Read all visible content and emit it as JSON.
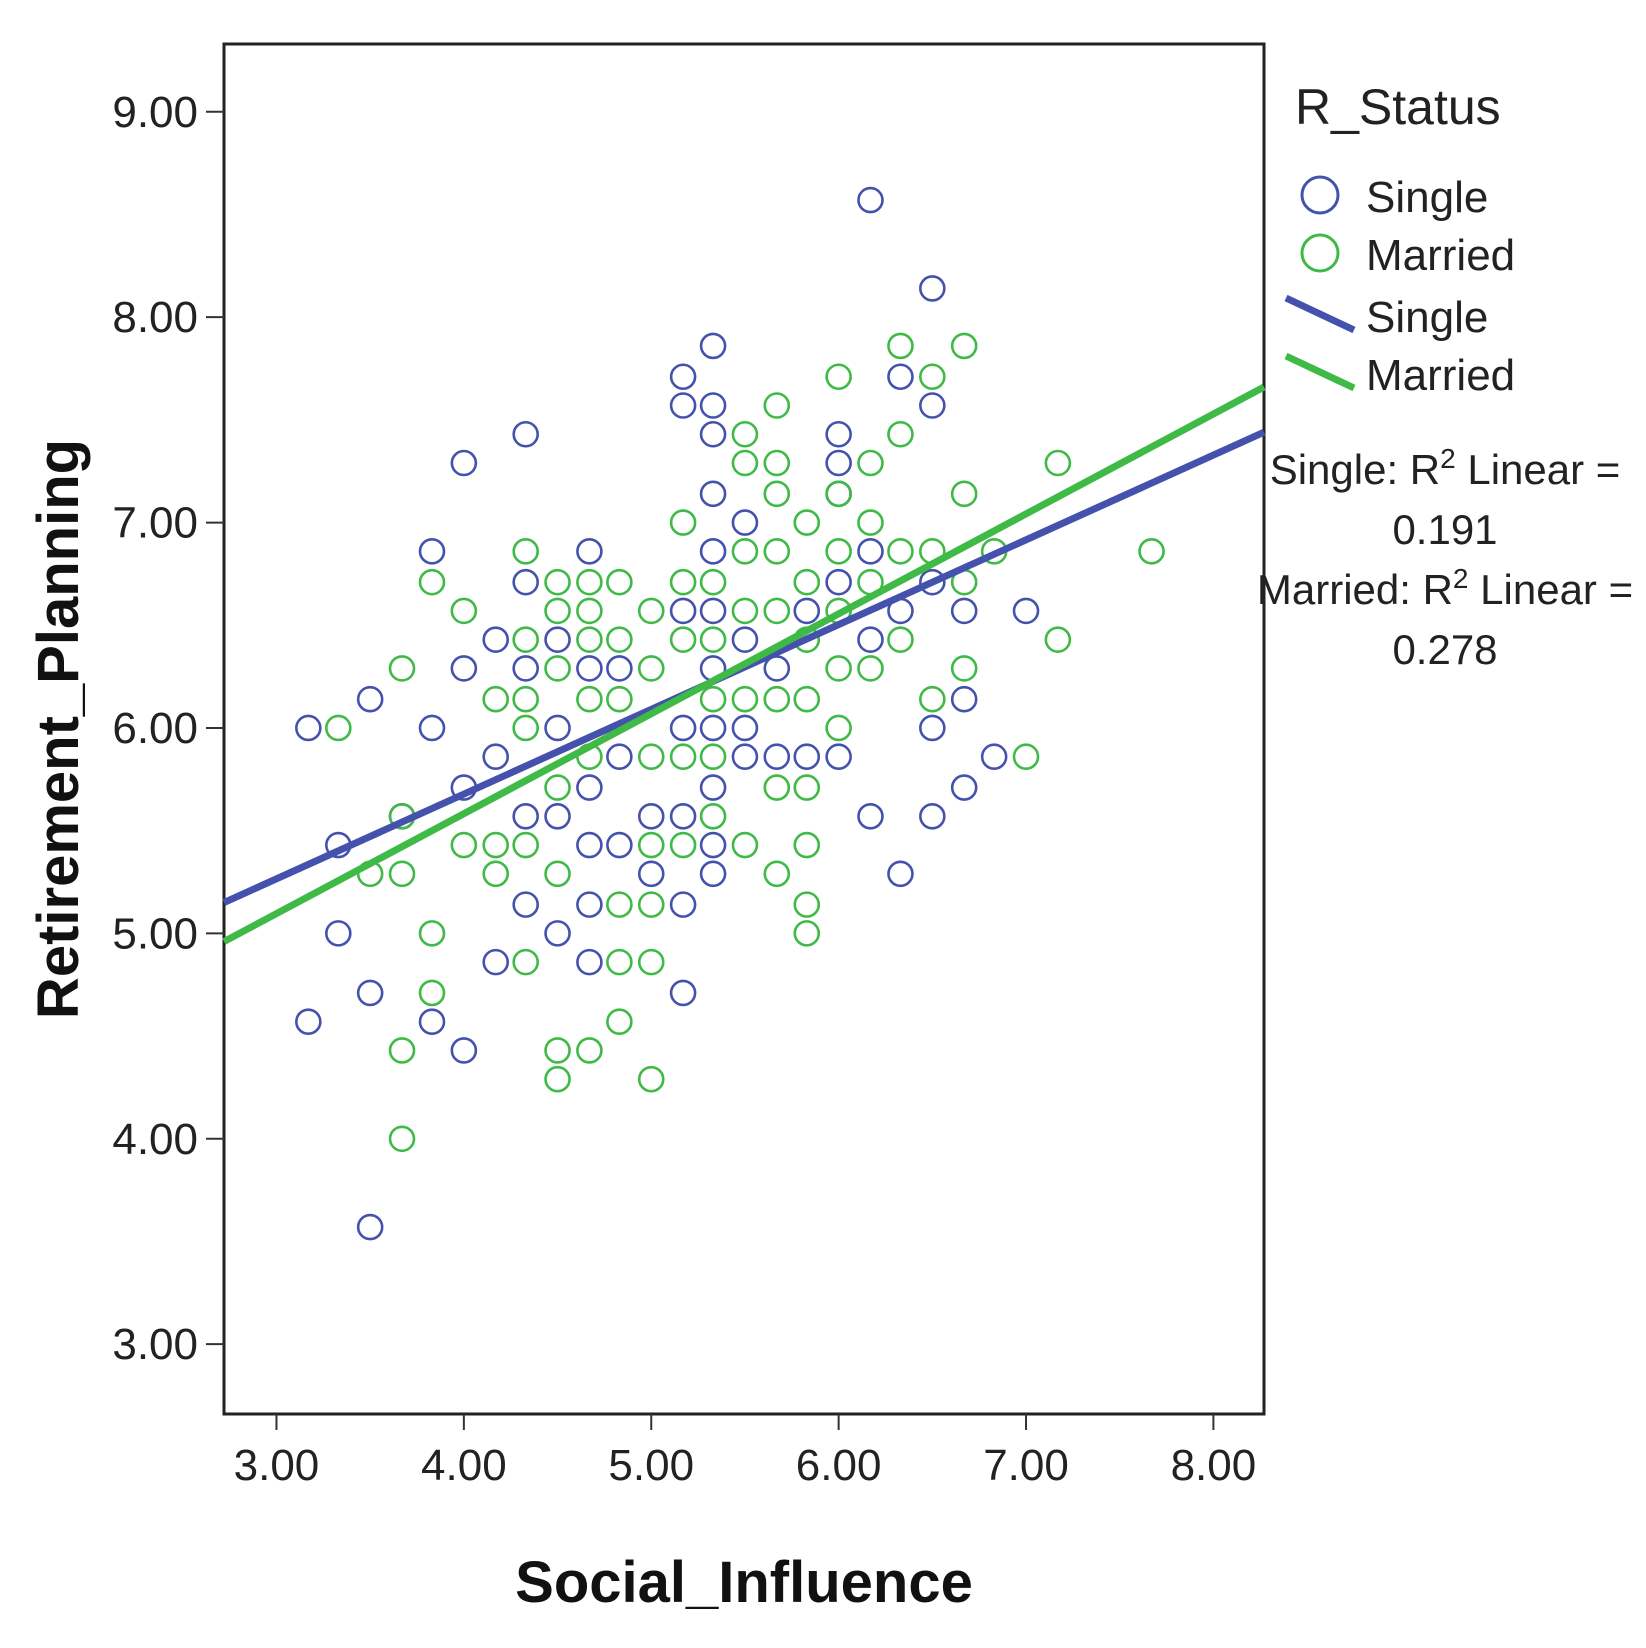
{
  "chart_data": {
    "type": "scatter",
    "title": "",
    "xlabel": "Social_Influence",
    "ylabel": "Retirement_Planning",
    "xlim": [
      2.72,
      8.27
    ],
    "ylim": [
      2.66,
      9.33
    ],
    "xticks": [
      "3.00",
      "4.00",
      "5.00",
      "6.00",
      "7.00",
      "8.00"
    ],
    "yticks": [
      "3.00",
      "4.00",
      "5.00",
      "6.00",
      "7.00",
      "8.00",
      "9.00"
    ],
    "legend": {
      "title": "R_Status",
      "placement": "right",
      "marker_entries": [
        "Single",
        "Married"
      ],
      "line_entries": [
        "Single",
        "Married"
      ]
    },
    "colors": {
      "Single": "#4452ad",
      "Married": "#3fba46"
    },
    "fit_lines": [
      {
        "name": "Single",
        "x": [
          2.72,
          8.27
        ],
        "y": [
          5.15,
          7.44
        ],
        "label": "Single: R",
        "sup": "2",
        "label_rest": " Linear =",
        "r2": "0.191"
      },
      {
        "name": "Married",
        "x": [
          2.72,
          8.27
        ],
        "y": [
          4.96,
          7.66
        ],
        "label": "Married: R",
        "sup": "2",
        "label_rest": " Linear =",
        "r2": "0.278"
      }
    ],
    "series": [
      {
        "name": "Single",
        "points": [
          [
            3.17,
            6.0
          ],
          [
            3.17,
            4.57
          ],
          [
            3.33,
            5.43
          ],
          [
            3.33,
            5.0
          ],
          [
            3.5,
            6.14
          ],
          [
            3.5,
            4.71
          ],
          [
            3.5,
            3.57
          ],
          [
            3.67,
            5.57
          ],
          [
            3.83,
            6.86
          ],
          [
            3.83,
            6.0
          ],
          [
            3.83,
            4.57
          ],
          [
            4.0,
            7.29
          ],
          [
            4.0,
            6.29
          ],
          [
            4.0,
            5.71
          ],
          [
            4.0,
            4.43
          ],
          [
            4.17,
            6.43
          ],
          [
            4.17,
            5.86
          ],
          [
            4.17,
            4.86
          ],
          [
            4.33,
            7.43
          ],
          [
            4.33,
            6.71
          ],
          [
            4.33,
            6.29
          ],
          [
            4.33,
            5.57
          ],
          [
            4.33,
            5.14
          ],
          [
            4.5,
            6.43
          ],
          [
            4.5,
            6.0
          ],
          [
            4.5,
            5.57
          ],
          [
            4.5,
            5.0
          ],
          [
            4.67,
            6.86
          ],
          [
            4.67,
            6.29
          ],
          [
            4.67,
            5.71
          ],
          [
            4.67,
            5.43
          ],
          [
            4.67,
            5.14
          ],
          [
            4.67,
            4.86
          ],
          [
            4.83,
            6.29
          ],
          [
            4.83,
            5.86
          ],
          [
            4.83,
            5.43
          ],
          [
            5.0,
            5.57
          ],
          [
            5.0,
            5.29
          ],
          [
            5.17,
            7.71
          ],
          [
            5.17,
            7.57
          ],
          [
            5.17,
            6.57
          ],
          [
            5.17,
            6.0
          ],
          [
            5.17,
            5.57
          ],
          [
            5.17,
            5.14
          ],
          [
            5.17,
            4.71
          ],
          [
            5.33,
            7.86
          ],
          [
            5.33,
            7.57
          ],
          [
            5.33,
            7.43
          ],
          [
            5.33,
            7.14
          ],
          [
            5.33,
            6.86
          ],
          [
            5.33,
            6.57
          ],
          [
            5.33,
            6.29
          ],
          [
            5.33,
            6.0
          ],
          [
            5.33,
            5.71
          ],
          [
            5.33,
            5.43
          ],
          [
            5.33,
            5.29
          ],
          [
            5.5,
            7.0
          ],
          [
            5.5,
            6.43
          ],
          [
            5.5,
            6.0
          ],
          [
            5.5,
            5.86
          ],
          [
            5.67,
            6.29
          ],
          [
            5.67,
            5.86
          ],
          [
            5.83,
            6.57
          ],
          [
            5.83,
            5.86
          ],
          [
            6.0,
            7.43
          ],
          [
            6.0,
            7.29
          ],
          [
            6.0,
            7.14
          ],
          [
            6.0,
            6.71
          ],
          [
            6.0,
            5.86
          ],
          [
            6.17,
            8.57
          ],
          [
            6.17,
            6.86
          ],
          [
            6.17,
            6.43
          ],
          [
            6.17,
            5.57
          ],
          [
            6.33,
            7.71
          ],
          [
            6.33,
            6.57
          ],
          [
            6.33,
            5.29
          ],
          [
            6.5,
            8.14
          ],
          [
            6.5,
            7.57
          ],
          [
            6.5,
            6.71
          ],
          [
            6.5,
            6.0
          ],
          [
            6.5,
            5.57
          ],
          [
            6.67,
            6.57
          ],
          [
            6.67,
            6.14
          ],
          [
            6.67,
            5.71
          ],
          [
            6.83,
            5.86
          ],
          [
            7.0,
            6.57
          ]
        ]
      },
      {
        "name": "Married",
        "points": [
          [
            3.33,
            6.0
          ],
          [
            3.5,
            5.29
          ],
          [
            3.67,
            6.29
          ],
          [
            3.67,
            5.57
          ],
          [
            3.67,
            5.29
          ],
          [
            3.67,
            4.43
          ],
          [
            3.67,
            4.0
          ],
          [
            3.83,
            6.71
          ],
          [
            3.83,
            5.0
          ],
          [
            3.83,
            4.71
          ],
          [
            4.0,
            6.57
          ],
          [
            4.0,
            5.43
          ],
          [
            4.17,
            6.14
          ],
          [
            4.17,
            5.43
          ],
          [
            4.17,
            5.29
          ],
          [
            4.33,
            6.86
          ],
          [
            4.33,
            6.43
          ],
          [
            4.33,
            6.14
          ],
          [
            4.33,
            6.0
          ],
          [
            4.33,
            5.43
          ],
          [
            4.33,
            4.86
          ],
          [
            4.5,
            6.71
          ],
          [
            4.5,
            6.57
          ],
          [
            4.5,
            6.29
          ],
          [
            4.5,
            5.71
          ],
          [
            4.5,
            5.29
          ],
          [
            4.5,
            4.43
          ],
          [
            4.5,
            4.29
          ],
          [
            4.67,
            6.71
          ],
          [
            4.67,
            6.57
          ],
          [
            4.67,
            6.43
          ],
          [
            4.67,
            6.14
          ],
          [
            4.67,
            5.86
          ],
          [
            4.67,
            4.43
          ],
          [
            4.83,
            6.71
          ],
          [
            4.83,
            6.43
          ],
          [
            4.83,
            6.14
          ],
          [
            4.83,
            5.14
          ],
          [
            4.83,
            4.86
          ],
          [
            4.83,
            4.57
          ],
          [
            5.0,
            6.57
          ],
          [
            5.0,
            6.29
          ],
          [
            5.0,
            5.86
          ],
          [
            5.0,
            5.43
          ],
          [
            5.0,
            5.14
          ],
          [
            5.0,
            4.86
          ],
          [
            5.0,
            4.29
          ],
          [
            5.17,
            7.0
          ],
          [
            5.17,
            6.71
          ],
          [
            5.17,
            6.43
          ],
          [
            5.17,
            5.86
          ],
          [
            5.17,
            5.43
          ],
          [
            5.33,
            6.71
          ],
          [
            5.33,
            6.43
          ],
          [
            5.33,
            6.14
          ],
          [
            5.33,
            5.86
          ],
          [
            5.33,
            5.57
          ],
          [
            5.5,
            7.43
          ],
          [
            5.5,
            7.29
          ],
          [
            5.5,
            6.86
          ],
          [
            5.5,
            6.57
          ],
          [
            5.5,
            6.14
          ],
          [
            5.5,
            5.43
          ],
          [
            5.67,
            7.57
          ],
          [
            5.67,
            7.29
          ],
          [
            5.67,
            7.14
          ],
          [
            5.67,
            6.86
          ],
          [
            5.67,
            6.57
          ],
          [
            5.67,
            6.14
          ],
          [
            5.67,
            5.71
          ],
          [
            5.67,
            5.29
          ],
          [
            5.83,
            7.0
          ],
          [
            5.83,
            6.71
          ],
          [
            5.83,
            6.43
          ],
          [
            5.83,
            6.14
          ],
          [
            5.83,
            5.71
          ],
          [
            5.83,
            5.43
          ],
          [
            5.83,
            5.14
          ],
          [
            5.83,
            5.0
          ],
          [
            6.0,
            7.71
          ],
          [
            6.0,
            7.14
          ],
          [
            6.0,
            6.86
          ],
          [
            6.0,
            6.57
          ],
          [
            6.0,
            6.29
          ],
          [
            6.0,
            6.0
          ],
          [
            6.17,
            7.29
          ],
          [
            6.17,
            7.0
          ],
          [
            6.17,
            6.71
          ],
          [
            6.17,
            6.29
          ],
          [
            6.33,
            7.86
          ],
          [
            6.33,
            7.43
          ],
          [
            6.33,
            6.86
          ],
          [
            6.33,
            6.43
          ],
          [
            6.5,
            7.71
          ],
          [
            6.5,
            6.86
          ],
          [
            6.5,
            6.14
          ],
          [
            6.67,
            7.86
          ],
          [
            6.67,
            7.14
          ],
          [
            6.67,
            6.71
          ],
          [
            6.67,
            6.29
          ],
          [
            6.83,
            6.86
          ],
          [
            7.0,
            5.86
          ],
          [
            7.17,
            7.29
          ],
          [
            7.17,
            6.43
          ],
          [
            7.67,
            6.86
          ]
        ]
      }
    ]
  }
}
